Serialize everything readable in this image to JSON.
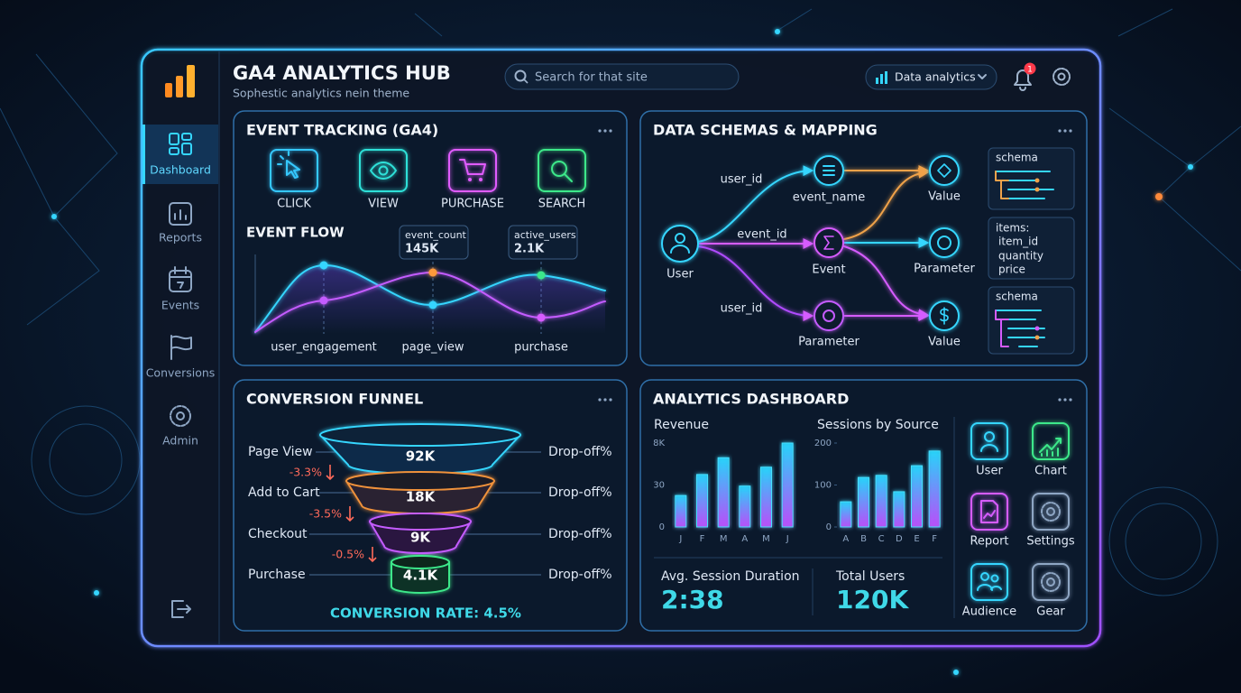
{
  "header": {
    "title": "GA4 ANALYTICS HUB",
    "subtitle": "Sophestic analytics nein theme",
    "search_placeholder": "Search for that site",
    "dropdown": "Data analytics",
    "notification_count": "1"
  },
  "sidebar": [
    "Dashboard",
    "Reports",
    "Events",
    "Conversions",
    "Admin"
  ],
  "event_tracking": {
    "title": "EVENT TRACKING (GA4)",
    "events": [
      "CLICK",
      "VIEW",
      "PURCHASE",
      "SEARCH"
    ],
    "flow_title": "EVENT FLOW",
    "tooltips": [
      {
        "label": "event_count",
        "value": "145K"
      },
      {
        "label": "active_users",
        "value": "2.1K"
      }
    ],
    "x_labels": [
      "user_engagement",
      "page_view",
      "purchase"
    ]
  },
  "schemas": {
    "title": "DATA SCHEMAS & MAPPING",
    "edges": [
      "user_id",
      "event_id",
      "user_id"
    ],
    "nodes": [
      "User",
      "event_name",
      "Event",
      "Parameter",
      "Value",
      "Parameter",
      "Value",
      "Value"
    ],
    "cards": [
      [
        "schema"
      ],
      [
        "items:",
        "item_id",
        "quantity",
        "price"
      ],
      [
        "schema"
      ]
    ]
  },
  "funnel": {
    "title": "CONVERSION FUNNEL",
    "stages": [
      {
        "name": "Page View",
        "value": "92K",
        "drop": "Drop-off%"
      },
      {
        "name": "Add to Cart",
        "value": "18K",
        "drop": "Drop-off%"
      },
      {
        "name": "Checkout",
        "value": "9K",
        "drop": "Drop-off%"
      },
      {
        "name": "Purchase",
        "value": "4.1K",
        "drop": "Drop-off%"
      }
    ],
    "changes": [
      "-3.3%",
      "-3.5%",
      "-0.5%"
    ],
    "conversion": "CONVERSION RATE: 4.5%"
  },
  "dashboard": {
    "title": "ANALYTICS DASHBOARD",
    "revenue": {
      "title": "Revenue",
      "categories": [
        "J",
        "F",
        "M",
        "A",
        "M",
        "J"
      ],
      "values": [
        3000,
        5000,
        6600,
        3900,
        5700,
        8000
      ],
      "ylim": [
        0,
        8000
      ],
      "axis_labels": [
        "8K",
        "30",
        "0"
      ]
    },
    "sessions": {
      "title": "Sessions by Source",
      "categories": [
        "A",
        "B",
        "C",
        "D",
        "E",
        "F"
      ],
      "values": [
        60,
        118,
        123,
        84,
        146,
        181
      ],
      "ylim": [
        0,
        200
      ],
      "yticks": [
        0,
        100,
        200
      ]
    },
    "stats": [
      {
        "label": "Avg. Session Duration",
        "value": "2:38"
      },
      {
        "label": "Total Users",
        "value": "120K"
      }
    ],
    "actions": [
      "User",
      "Chart",
      "Report",
      "Settings",
      "Audience",
      "Gear"
    ]
  }
}
